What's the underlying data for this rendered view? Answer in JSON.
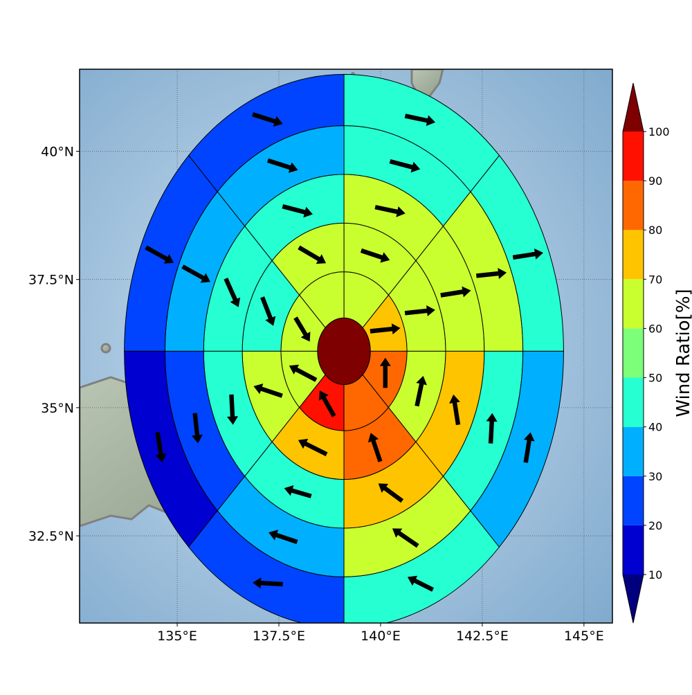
{
  "chart_data": {
    "type": "polar-sector-wind-map",
    "map": {
      "lon_range": [
        132.6,
        145.7
      ],
      "lat_range": [
        30.8,
        41.6
      ],
      "projection": "cylindrical",
      "grid": true,
      "x_ticks": [
        135,
        137.5,
        140,
        142.5,
        145
      ],
      "x_tick_labels": [
        "135°E",
        "137.5°E",
        "140°E",
        "142.5°E",
        "145°E"
      ],
      "y_ticks": [
        32.5,
        35,
        37.5,
        40
      ],
      "y_tick_labels": [
        "32.5°N",
        "35°N",
        "37.5°N",
        "40°N"
      ],
      "land_color": "#9fa89b",
      "ocean_color": "#8fb3d3",
      "coastline_color": "#808080"
    },
    "center": {
      "lon": 139.1,
      "lat": 36.1
    },
    "ring_radii_deg": [
      0.65,
      1.55,
      2.5,
      3.45,
      4.4,
      5.4
    ],
    "colorbar": {
      "label": "Wind Ratio[%]",
      "levels": [
        10,
        20,
        30,
        40,
        50,
        60,
        70,
        80,
        90,
        100
      ],
      "tick_labels": [
        "10",
        "20",
        "30",
        "40",
        "50",
        "60",
        "70",
        "80",
        "90",
        "100"
      ],
      "colors": [
        "#0000d0",
        "#0044ff",
        "#00b0ff",
        "#26ffd2",
        "#7cff79",
        "#caff2f",
        "#ffc400",
        "#ff6800",
        "#ff1000"
      ],
      "under_color": "#00007f",
      "over_color": "#7f0000",
      "extend": "both"
    },
    "center_value": 100,
    "rings": [
      {
        "ring": 1,
        "sectors": [
          {
            "az": 0,
            "w": 75,
            "u": 0.95,
            "v": 0.1
          },
          {
            "az": 1,
            "w": 65,
            "u": 0.0,
            "v": 0.0
          },
          {
            "az": 2,
            "w": 65,
            "u": 0.0,
            "v": 0.0
          },
          {
            "az": 3,
            "w": 65,
            "u": 0.45,
            "v": -0.75
          },
          {
            "az": 4,
            "w": 65,
            "u": -0.85,
            "v": 0.45
          },
          {
            "az": 5,
            "w": 95,
            "u": -0.45,
            "v": 0.8
          },
          {
            "az": 6,
            "w": 85,
            "u": 0.0,
            "v": 0.0
          },
          {
            "az": 7,
            "w": 85,
            "u": 0.0,
            "v": 0.95
          }
        ]
      },
      {
        "ring": 2,
        "sectors": [
          {
            "az": 0,
            "w": 65,
            "u": 0.95,
            "v": 0.1
          },
          {
            "az": 1,
            "w": 65,
            "u": 0.9,
            "v": -0.3
          },
          {
            "az": 2,
            "w": 65,
            "u": 0.85,
            "v": -0.5
          },
          {
            "az": 3,
            "w": 45,
            "u": 0.35,
            "v": -0.9
          },
          {
            "az": 4,
            "w": 65,
            "u": -0.9,
            "v": 0.3
          },
          {
            "az": 5,
            "w": 75,
            "u": -0.9,
            "v": 0.45
          },
          {
            "az": 6,
            "w": 85,
            "u": -0.3,
            "v": 0.9
          },
          {
            "az": 7,
            "w": 65,
            "u": 0.2,
            "v": 0.95
          }
        ]
      },
      {
        "ring": 3,
        "sectors": [
          {
            "az": 0,
            "w": 65,
            "u": 0.95,
            "v": 0.15
          },
          {
            "az": 1,
            "w": 65,
            "u": 0.95,
            "v": -0.2
          },
          {
            "az": 2,
            "w": 45,
            "u": 0.95,
            "v": -0.25
          },
          {
            "az": 3,
            "w": 45,
            "u": 0.4,
            "v": -0.9
          },
          {
            "az": 4,
            "w": 45,
            "u": 0.05,
            "v": -0.95
          },
          {
            "az": 5,
            "w": 45,
            "u": -0.85,
            "v": 0.25
          },
          {
            "az": 6,
            "w": 75,
            "u": -0.75,
            "v": 0.55
          },
          {
            "az": 7,
            "w": 75,
            "u": -0.15,
            "v": 0.95
          }
        ]
      },
      {
        "ring": 4,
        "sectors": [
          {
            "az": 0,
            "w": 65,
            "u": 0.95,
            "v": 0.1
          },
          {
            "az": 1,
            "w": 45,
            "u": 0.95,
            "v": -0.25
          },
          {
            "az": 2,
            "w": 35,
            "u": 0.95,
            "v": -0.3
          },
          {
            "az": 3,
            "w": 35,
            "u": 0.9,
            "v": -0.5
          },
          {
            "az": 4,
            "w": 25,
            "u": 0.1,
            "v": -0.95
          },
          {
            "az": 5,
            "w": 35,
            "u": -0.9,
            "v": 0.3
          },
          {
            "az": 6,
            "w": 65,
            "u": -0.8,
            "v": 0.55
          },
          {
            "az": 7,
            "w": 45,
            "u": 0.05,
            "v": 0.95
          }
        ]
      },
      {
        "ring": 5,
        "sectors": [
          {
            "az": 0,
            "w": 45,
            "u": 0.95,
            "v": 0.15
          },
          {
            "az": 1,
            "w": 45,
            "u": 0.95,
            "v": -0.2
          },
          {
            "az": 2,
            "w": 25,
            "u": 0.95,
            "v": -0.3
          },
          {
            "az": 3,
            "w": 25,
            "u": 0.9,
            "v": -0.5
          },
          {
            "az": 4,
            "w": 15,
            "u": 0.15,
            "v": -0.95
          },
          {
            "az": 5,
            "w": 25,
            "u": -0.95,
            "v": 0.05
          },
          {
            "az": 6,
            "w": 45,
            "u": -0.8,
            "v": 0.4
          },
          {
            "az": 7,
            "w": 35,
            "u": 0.15,
            "v": 0.95
          }
        ]
      },
      {
        "ring": 6,
        "sectors": [
          {
            "az": 0,
            "w": 35,
            "u": 0.95,
            "v": 0.15
          },
          {
            "az": 1,
            "w": 45,
            "u": 0.95,
            "v": -0.2
          },
          {
            "az": 2,
            "w": 35,
            "u": 0.95,
            "v": -0.3
          },
          {
            "az": 3,
            "w": 25,
            "u": 0.9,
            "v": -0.5
          },
          {
            "az": 4,
            "w": 15,
            "u": 0.85,
            "v": -0.5
          },
          {
            "az": 5,
            "w": 15,
            "u": -0.75,
            "v": -0.6
          },
          {
            "az": 6,
            "w": 45,
            "u": -0.7,
            "v": 0.45
          },
          {
            "az": 7,
            "w": 25,
            "u": 0.6,
            "v": 0.75
          }
        ]
      }
    ]
  }
}
